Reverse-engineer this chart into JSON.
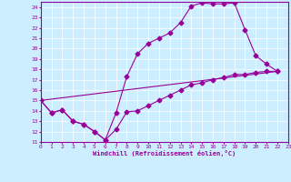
{
  "xlabel": "Windchill (Refroidissement éolien,°C)",
  "xlim": [
    0,
    23
  ],
  "ylim": [
    11,
    24.5
  ],
  "xticks": [
    0,
    1,
    2,
    3,
    4,
    5,
    6,
    7,
    8,
    9,
    10,
    11,
    12,
    13,
    14,
    15,
    16,
    17,
    18,
    19,
    20,
    21,
    22,
    23
  ],
  "yticks": [
    11,
    12,
    13,
    14,
    15,
    16,
    17,
    18,
    19,
    20,
    21,
    22,
    23,
    24
  ],
  "line_color": "#990099",
  "background_color": "#cceeff",
  "grid_color": "#ffffff",
  "line1_x": [
    0,
    1,
    2,
    3,
    4,
    5,
    6,
    7,
    8,
    9,
    10,
    11,
    12,
    13,
    14,
    15,
    16,
    17,
    18,
    19,
    20,
    21,
    22
  ],
  "line1_y": [
    15.0,
    13.8,
    14.1,
    13.0,
    12.7,
    12.0,
    11.2,
    13.8,
    17.3,
    19.5,
    20.5,
    21.0,
    21.5,
    22.5,
    24.1,
    24.4,
    24.3,
    24.3,
    24.4,
    21.8,
    19.3,
    18.5,
    17.8
  ],
  "line2_x": [
    0,
    1,
    2,
    3,
    4,
    5,
    6,
    7,
    8,
    9,
    10,
    11,
    12,
    13,
    14,
    15,
    16,
    17,
    18,
    19,
    20,
    21,
    22
  ],
  "line2_y": [
    15.0,
    13.8,
    14.1,
    13.0,
    12.7,
    12.0,
    11.2,
    12.2,
    13.9,
    14.0,
    14.5,
    15.0,
    15.5,
    16.0,
    16.5,
    16.7,
    17.0,
    17.2,
    17.5,
    17.5,
    17.7,
    17.8,
    17.8
  ],
  "line3_x": [
    0,
    22
  ],
  "line3_y": [
    15.0,
    17.8
  ]
}
